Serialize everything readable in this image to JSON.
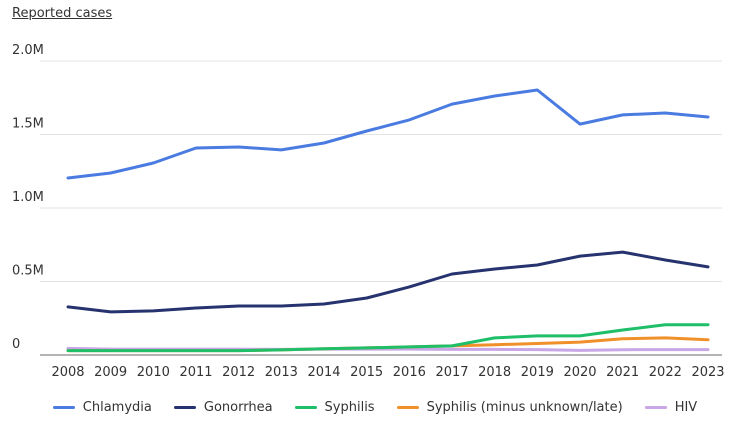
{
  "chart_data": {
    "type": "line",
    "ylabel": "Reported cases",
    "xlabel": "",
    "x": [
      2008,
      2009,
      2010,
      2011,
      2012,
      2013,
      2014,
      2015,
      2016,
      2017,
      2018,
      2019,
      2020,
      2021,
      2022,
      2023
    ],
    "x_tick_labels": [
      "2008",
      "2009",
      "2010",
      "2011",
      "2012",
      "2013",
      "2014",
      "2015",
      "2016",
      "2017",
      "2018",
      "2019",
      "2020",
      "2021",
      "2022",
      "2023"
    ],
    "ylim": [
      0,
      2000000
    ],
    "y_ticks": [
      0,
      500000,
      1000000,
      1500000,
      2000000
    ],
    "y_tick_labels": [
      "0",
      "0.5M",
      "1.0M",
      "1.5M",
      "2.0M"
    ],
    "grid": true,
    "legend_position": "bottom",
    "series": [
      {
        "name": "Chlamydia",
        "color": "#4a7be0",
        "values": [
          1204000,
          1238000,
          1306000,
          1408000,
          1415000,
          1395000,
          1442000,
          1524000,
          1599000,
          1707000,
          1762000,
          1803000,
          1571000,
          1633000,
          1646000,
          1619000
        ]
      },
      {
        "name": "Gonorrhea",
        "color": "#26336e",
        "values": [
          327000,
          293000,
          300000,
          320000,
          333000,
          333000,
          347000,
          388000,
          463000,
          551000,
          585000,
          612000,
          673000,
          700000,
          646000,
          599000
        ]
      },
      {
        "name": "Syphilis",
        "color": "#1fbf6a",
        "values": [
          30000,
          30000,
          30000,
          30000,
          30000,
          35000,
          42000,
          48000,
          55000,
          62000,
          116000,
          130000,
          130000,
          170000,
          206000,
          206000
        ]
      },
      {
        "name": "Syphilis (minus unknown/late)",
        "color": "#f0902a",
        "values": [
          30000,
          30000,
          30000,
          30000,
          30000,
          35000,
          42000,
          48000,
          55000,
          62000,
          70000,
          78000,
          88000,
          110000,
          116000,
          104000
        ]
      },
      {
        "name": "HIV",
        "color": "#c9a6e6",
        "values": [
          45000,
          40000,
          40000,
          40000,
          40000,
          38000,
          40000,
          40000,
          40000,
          38000,
          38000,
          37000,
          31000,
          36000,
          37000,
          37000
        ]
      }
    ]
  }
}
